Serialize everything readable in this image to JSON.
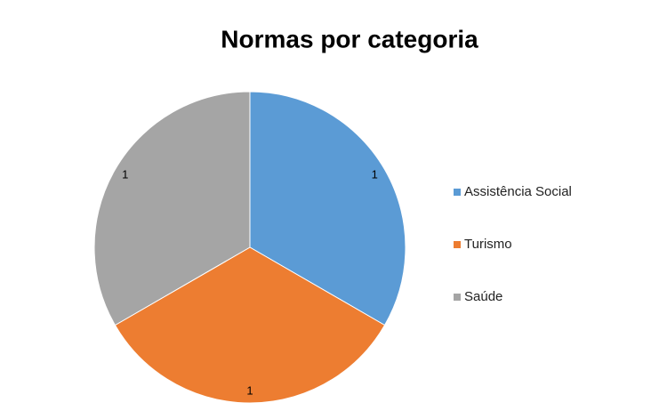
{
  "chart_data": {
    "type": "pie",
    "title": "Normas por categoria",
    "categories": [
      "Assistência Social",
      "Turismo",
      "Saúde"
    ],
    "values": [
      1,
      1,
      1
    ],
    "colors": [
      "#5b9bd5",
      "#ed7d31",
      "#a5a5a5"
    ],
    "legend": "right"
  }
}
